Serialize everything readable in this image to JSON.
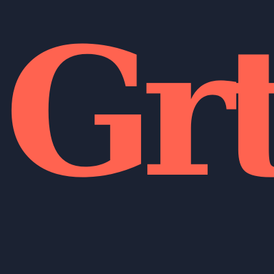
{
  "logo": {
    "letters": [
      "G",
      "r",
      "t"
    ]
  },
  "colors": {
    "background": "#1b2232",
    "text": "#ff6350"
  }
}
